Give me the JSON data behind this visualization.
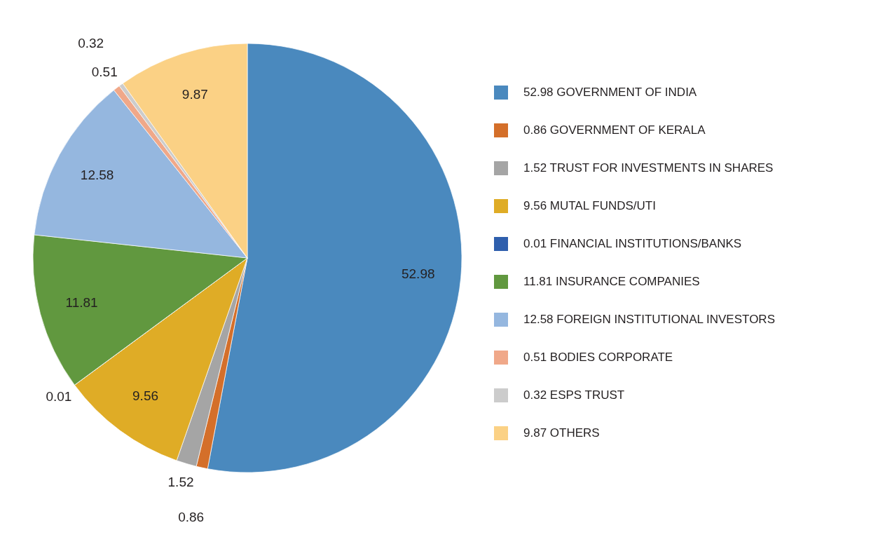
{
  "chart_data": {
    "type": "pie",
    "categories": [
      "52.98 GOVERNMENT OF INDIA",
      "0.86 GOVERNMENT OF KERALA",
      "1.52 TRUST FOR INVESTMENTS IN SHARES",
      "9.56 MUTAL FUNDS/UTI",
      "0.01 FINANCIAL INSTITUTIONS/BANKS",
      "11.81 INSURANCE COMPANIES",
      "12.58 FOREIGN INSTITUTIONAL INVESTORS",
      "0.51 BODIES CORPORATE",
      "0.32 ESPS TRUST",
      "9.87 OTHERS"
    ],
    "values": [
      52.98,
      0.86,
      1.52,
      9.56,
      0.01,
      11.81,
      12.58,
      0.51,
      0.32,
      9.87
    ],
    "colors": [
      "#4a89be",
      "#d46f2a",
      "#a5a5a5",
      "#dfac26",
      "#2f5fad",
      "#61983f",
      "#95b7df",
      "#f0a889",
      "#cccccc",
      "#fbd185"
    ],
    "data_labels": true,
    "legend": "right"
  }
}
